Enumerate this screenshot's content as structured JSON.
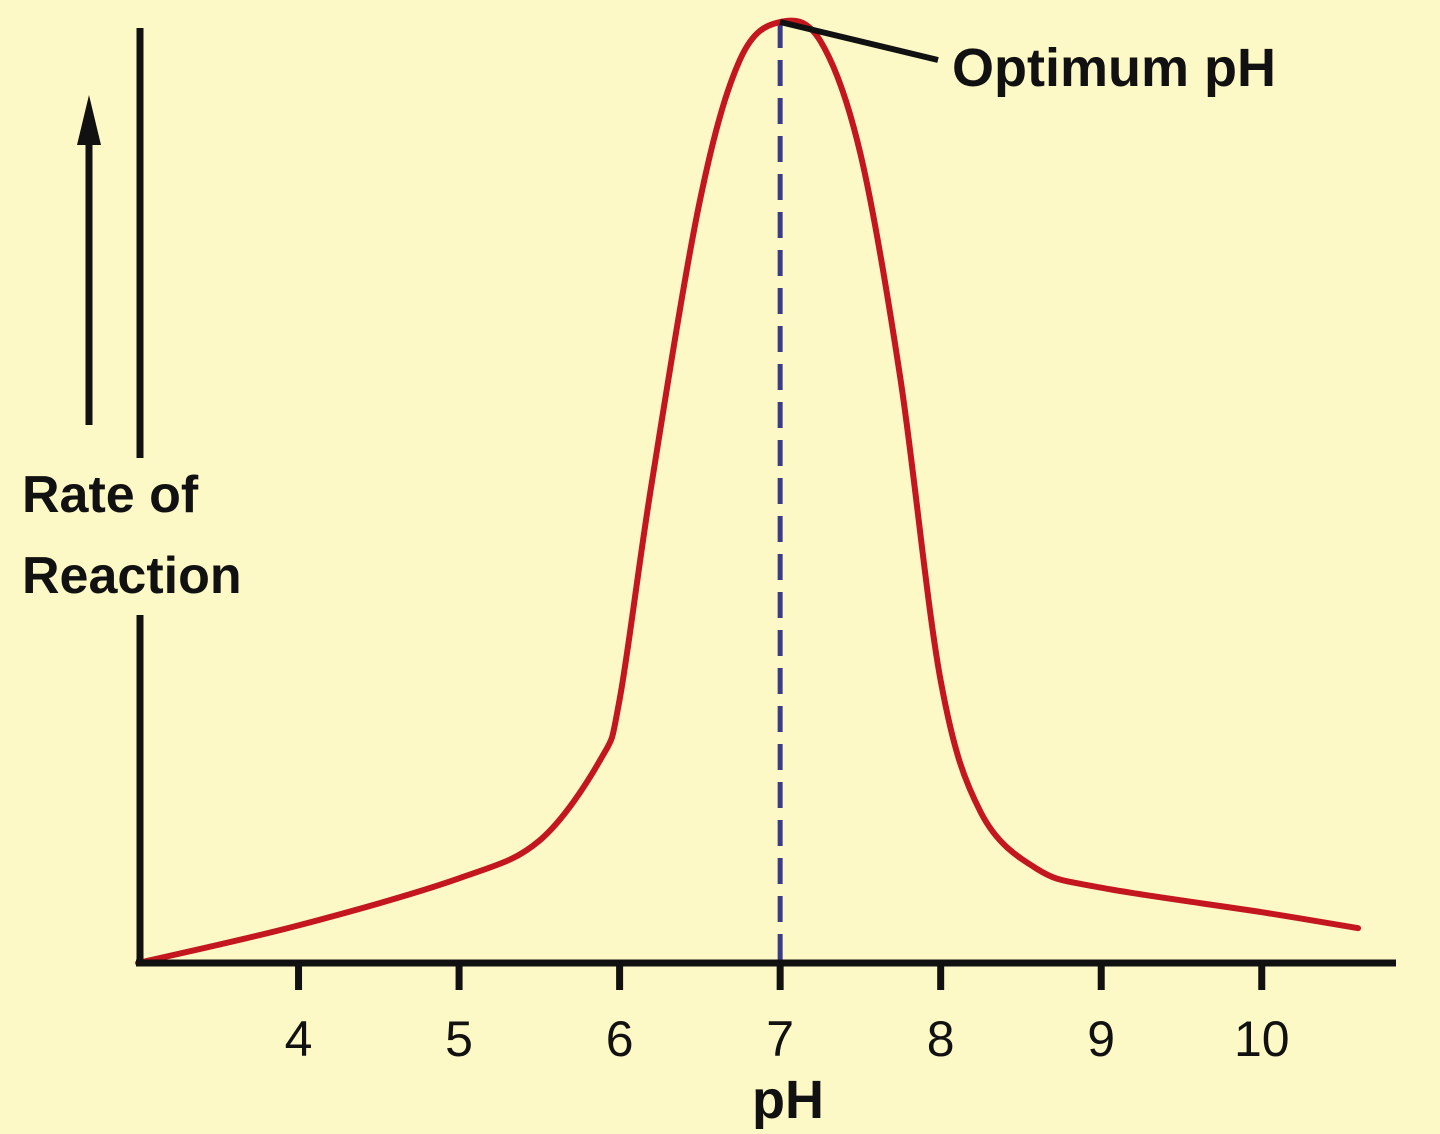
{
  "chart_data": {
    "type": "line",
    "title": "",
    "xlabel": "pH",
    "ylabel_lines": [
      "Rate of",
      "Reaction"
    ],
    "xlim": [
      3.0,
      10.83
    ],
    "ylim": [
      0,
      100
    ],
    "x_ticks": [
      4,
      5,
      6,
      7,
      8,
      9,
      10
    ],
    "x_tick_labels": [
      "4",
      "5",
      "6",
      "7",
      "8",
      "9",
      "10"
    ],
    "y_ticks": [],
    "grid": false,
    "series": [
      {
        "x": [
          3.0,
          4.0,
          5.0,
          5.5,
          5.88,
          6.0,
          6.2,
          6.5,
          6.75,
          7.0,
          7.25,
          7.5,
          7.75,
          8.0,
          8.25,
          8.6,
          9.0,
          10.0,
          10.6
        ],
        "y": [
          0,
          4,
          9,
          13,
          21.6,
          28,
          51,
          81,
          96,
          100,
          98,
          86,
          62,
          30,
          16,
          10,
          8,
          5.4,
          3.7
        ],
        "color": "#c3161f"
      }
    ],
    "annotations": [
      {
        "text": "Optimum pH",
        "x": 7.0,
        "y": 100,
        "type": "leader-line"
      },
      {
        "type": "vertical-dashed-line",
        "x": 7.0,
        "color": "#3b3b8c"
      }
    ],
    "colors": {
      "background": "#fdf9c6",
      "curve": "#c3161f",
      "dashed": "#3b3b8c",
      "axis": "#111111"
    }
  }
}
